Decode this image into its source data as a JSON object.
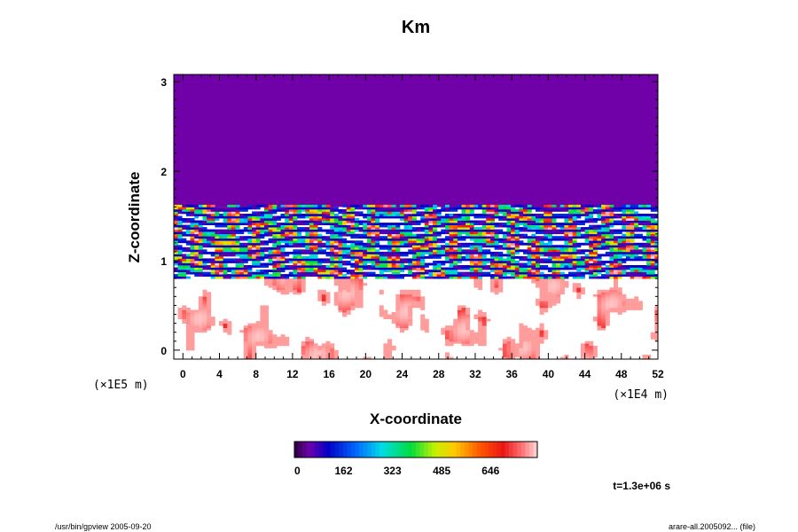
{
  "chart_data": {
    "type": "heatmap",
    "title": "Km",
    "xlabel": "X-coordinate",
    "ylabel": "Z-coordinate",
    "x_scale_label": "(×1E4 m)",
    "y_scale_label": "(×1E5 m)",
    "xlim": [
      -1,
      52
    ],
    "ylim": [
      -0.1,
      3.08
    ],
    "x_ticks": [
      "0",
      "4",
      "8",
      "12",
      "16",
      "20",
      "24",
      "28",
      "32",
      "36",
      "40",
      "44",
      "48",
      "52"
    ],
    "y_ticks": [
      "0",
      "1",
      "2",
      "3"
    ],
    "colorbar": {
      "min": 0,
      "max": 800,
      "tick_labels": [
        "0",
        "162",
        "323",
        "485",
        "646"
      ],
      "tick_values": [
        0,
        162,
        323,
        485,
        646
      ],
      "colormap": "rainbow (purple to red to pink)"
    },
    "field_summary": {
      "upper_layer": {
        "z_range": [
          1.6,
          3.08
        ],
        "value": 0,
        "description_color": "#7000a8"
      },
      "mixed_layer": {
        "z_range": [
          0.8,
          1.6
        ],
        "value_range": [
          0,
          800
        ]
      },
      "lower_layer": {
        "z_range": [
          -0.1,
          0.8
        ],
        "value_range": [
          0,
          800
        ]
      }
    },
    "time_label": "t=1.3e+06 s",
    "footer_left": "/usr/bin/gpview 2005-09-20",
    "footer_right": "arare-all.2005092... (file)"
  },
  "colors": {
    "background": "#ffffff",
    "purple_region": "#7000a8"
  }
}
